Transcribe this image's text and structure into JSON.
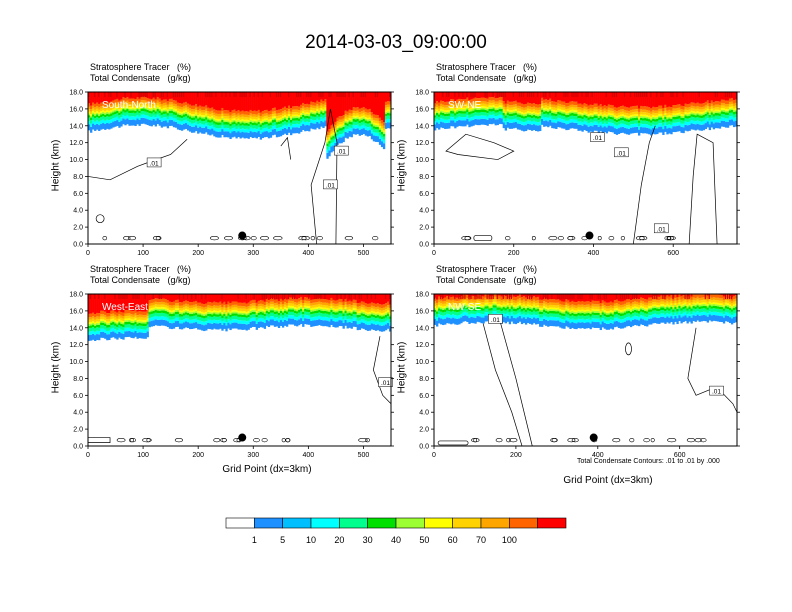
{
  "title": "2014-03-03_09:00:00",
  "header_line1": "Stratosphere Tracer   (%)",
  "header_line2": "Total Condensate   (g/kg)",
  "ylabel": "Height (km)",
  "xlabel": "Grid Point (dx=3km)",
  "contour_note": "Total Condensate Contours: .01 to .01 by .000",
  "y_ticks": [
    "0.0",
    "2.0",
    "4.0",
    "6.0",
    "8.0",
    "10.0",
    "12.0",
    "14.0",
    "16.0",
    "18.0"
  ],
  "contour_label": ".01",
  "colors": {
    "levels": [
      "#ffffff",
      "#1e90ff",
      "#3aa0ff",
      "#00ffff",
      "#00ff8c",
      "#00e000",
      "#9cff32",
      "#ffff00",
      "#ffd200",
      "#ffa500",
      "#ff6400",
      "#ff0000"
    ],
    "marker": "#000000"
  },
  "panels": [
    {
      "name": "South-North",
      "xmax": 550,
      "x_ticks": [
        "0",
        "100",
        "200",
        "300",
        "400",
        "500"
      ]
    },
    {
      "name": "SW-NE",
      "xmax": 760,
      "x_ticks": [
        "0",
        "200",
        "400",
        "600"
      ]
    },
    {
      "name": "West-East",
      "xmax": 550,
      "x_ticks": [
        "0",
        "100",
        "200",
        "300",
        "400",
        "500"
      ]
    },
    {
      "name": "NW-SE",
      "xmax": 740,
      "x_ticks": [
        "0",
        "200",
        "400",
        "600"
      ]
    }
  ],
  "colorbar": {
    "labels": [
      "1",
      "5",
      "10",
      "20",
      "30",
      "40",
      "50",
      "60",
      "70",
      "100"
    ],
    "colors": [
      "#ffffff",
      "#1e90ff",
      "#00bfff",
      "#00ffff",
      "#00ff8c",
      "#00e000",
      "#9cff32",
      "#ffff00",
      "#ffd200",
      "#ffa500",
      "#ff6400",
      "#ff0000"
    ]
  },
  "chart_data": [
    {
      "type": "heatmap",
      "title": "South-North",
      "xlim": [
        0,
        550
      ],
      "ylim": [
        0,
        18
      ],
      "ylabel": "Height (km)",
      "marker": {
        "x": 280,
        "y": 1.0
      }
    },
    {
      "type": "heatmap",
      "title": "SW-NE",
      "xlim": [
        0,
        760
      ],
      "ylim": [
        0,
        18
      ],
      "ylabel": "Height (km)",
      "marker": {
        "x": 390,
        "y": 1.0
      }
    },
    {
      "type": "heatmap",
      "title": "West-East",
      "xlim": [
        0,
        550
      ],
      "ylim": [
        0,
        18
      ],
      "ylabel": "Height (km)",
      "xlabel": "Grid Point (dx=3km)",
      "marker": {
        "x": 280,
        "y": 1.0
      }
    },
    {
      "type": "heatmap",
      "title": "NW-SE",
      "xlim": [
        0,
        740
      ],
      "ylim": [
        0,
        18
      ],
      "ylabel": "Height (km)",
      "xlabel": "Grid Point (dx=3km)",
      "marker": {
        "x": 390,
        "y": 1.0
      }
    }
  ]
}
